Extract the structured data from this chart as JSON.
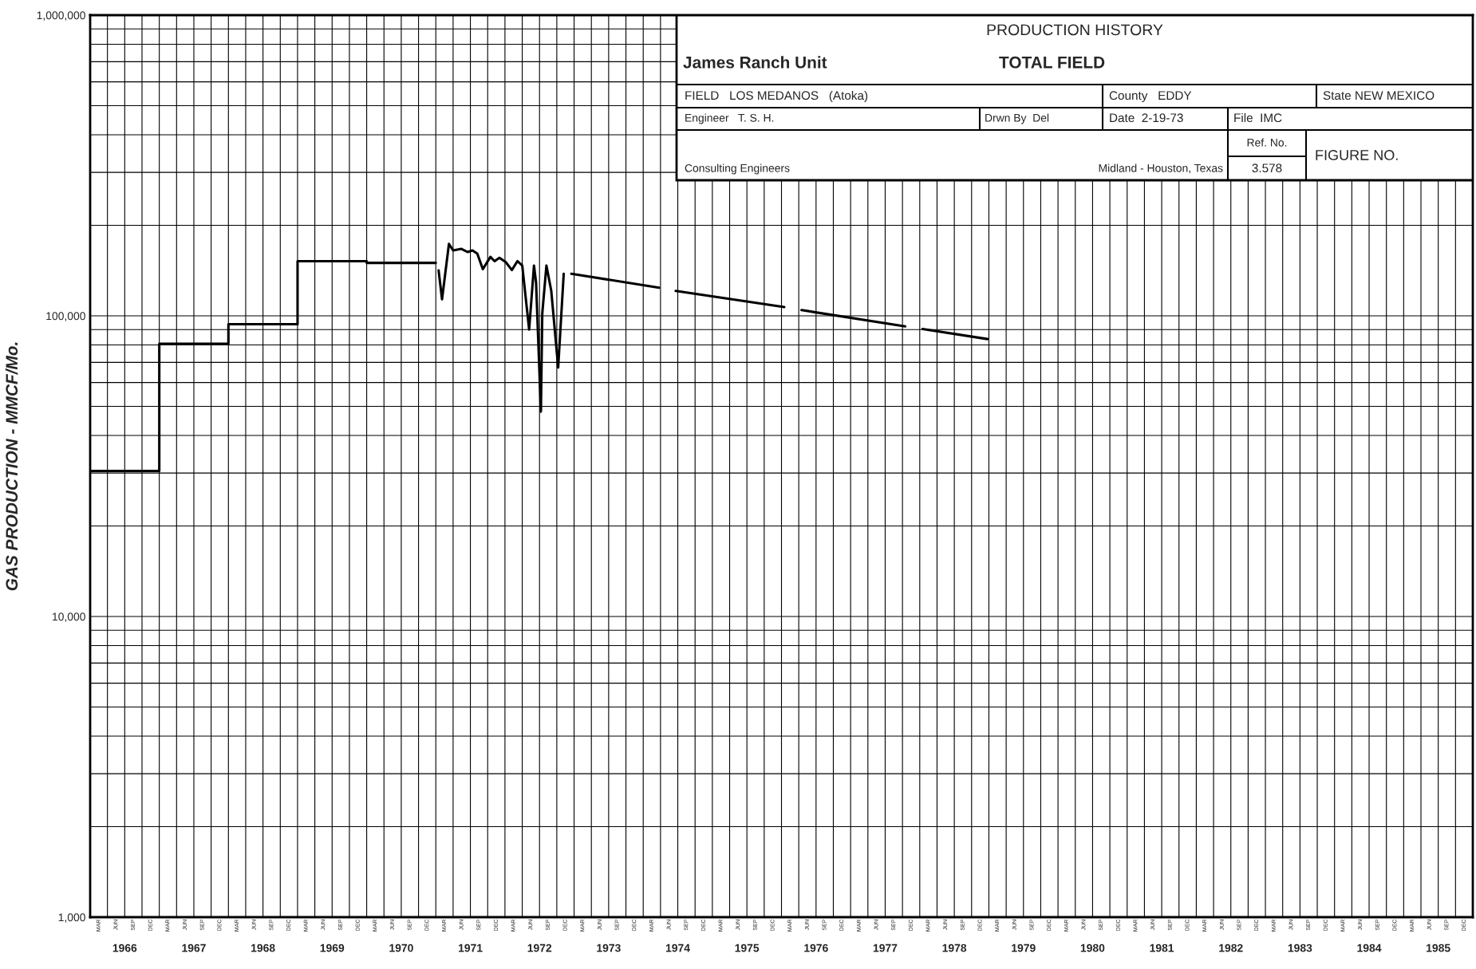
{
  "chart_data": {
    "type": "line",
    "title": "PRODUCTION HISTORY",
    "subtitle": "James Ranch Unit",
    "ylabel": "GAS PRODUCTION - MMCF/Mo.",
    "log": "y",
    "grid": true,
    "xlim": [
      1966,
      1986
    ],
    "ylim": [
      1000,
      1000000
    ],
    "yticks": [
      {
        "value": 1000,
        "label": "1,000"
      },
      {
        "value": 2000,
        "label": null
      },
      {
        "value": 3000,
        "label": null
      },
      {
        "value": 4000,
        "label": null
      },
      {
        "value": 5000,
        "label": null
      },
      {
        "value": 6000,
        "label": null
      },
      {
        "value": 7000,
        "label": null
      },
      {
        "value": 8000,
        "label": null
      },
      {
        "value": 9000,
        "label": null
      },
      {
        "value": 10000,
        "label": "10,000"
      },
      {
        "value": 20000,
        "label": null
      },
      {
        "value": 30000,
        "label": null
      },
      {
        "value": 40000,
        "label": null
      },
      {
        "value": 50000,
        "label": null
      },
      {
        "value": 60000,
        "label": null
      },
      {
        "value": 70000,
        "label": null
      },
      {
        "value": 80000,
        "label": null
      },
      {
        "value": 90000,
        "label": null
      },
      {
        "value": 100000,
        "label": "100,000"
      },
      {
        "value": 200000,
        "label": null
      },
      {
        "value": 300000,
        "label": null
      },
      {
        "value": 400000,
        "label": null
      },
      {
        "value": 500000,
        "label": null
      },
      {
        "value": 600000,
        "label": null
      },
      {
        "value": 700000,
        "label": null
      },
      {
        "value": 800000,
        "label": null
      },
      {
        "value": 900000,
        "label": null
      },
      {
        "value": 1000000,
        "label": "1,000,000"
      }
    ],
    "xticks": [
      {
        "value": 1966,
        "label": null
      },
      {
        "value": 1966.25,
        "label": null
      },
      {
        "value": 1966.5,
        "label": "1966"
      },
      {
        "value": 1966.75,
        "label": null
      },
      {
        "value": 1967,
        "label": null
      },
      {
        "value": 1967.25,
        "label": null
      },
      {
        "value": 1967.5,
        "label": "1967"
      },
      {
        "value": 1967.75,
        "label": null
      },
      {
        "value": 1968,
        "label": null
      },
      {
        "value": 1968.25,
        "label": null
      },
      {
        "value": 1968.5,
        "label": "1968"
      },
      {
        "value": 1968.75,
        "label": null
      },
      {
        "value": 1969,
        "label": null
      },
      {
        "value": 1969.25,
        "label": null
      },
      {
        "value": 1969.5,
        "label": "1969"
      },
      {
        "value": 1969.75,
        "label": null
      },
      {
        "value": 1970,
        "label": null
      },
      {
        "value": 1970.25,
        "label": null
      },
      {
        "value": 1970.5,
        "label": "1970"
      },
      {
        "value": 1970.75,
        "label": null
      },
      {
        "value": 1971,
        "label": null
      },
      {
        "value": 1971.25,
        "label": null
      },
      {
        "value": 1971.5,
        "label": "1971"
      },
      {
        "value": 1971.75,
        "label": null
      },
      {
        "value": 1972,
        "label": null
      },
      {
        "value": 1972.25,
        "label": null
      },
      {
        "value": 1972.5,
        "label": "1972"
      },
      {
        "value": 1972.75,
        "label": null
      },
      {
        "value": 1973,
        "label": null
      },
      {
        "value": 1973.25,
        "label": null
      },
      {
        "value": 1973.5,
        "label": "1973"
      },
      {
        "value": 1973.75,
        "label": null
      },
      {
        "value": 1974,
        "label": null
      },
      {
        "value": 1974.25,
        "label": null
      },
      {
        "value": 1974.5,
        "label": "1974"
      },
      {
        "value": 1974.75,
        "label": null
      },
      {
        "value": 1975,
        "label": null
      },
      {
        "value": 1975.25,
        "label": null
      },
      {
        "value": 1975.5,
        "label": "1975"
      },
      {
        "value": 1975.75,
        "label": null
      },
      {
        "value": 1976,
        "label": null
      },
      {
        "value": 1976.25,
        "label": null
      },
      {
        "value": 1976.5,
        "label": "1976"
      },
      {
        "value": 1976.75,
        "label": null
      },
      {
        "value": 1977,
        "label": null
      },
      {
        "value": 1977.25,
        "label": null
      },
      {
        "value": 1977.5,
        "label": "1977"
      },
      {
        "value": 1977.75,
        "label": null
      },
      {
        "value": 1978,
        "label": null
      },
      {
        "value": 1978.25,
        "label": null
      },
      {
        "value": 1978.5,
        "label": "1978"
      },
      {
        "value": 1978.75,
        "label": null
      },
      {
        "value": 1979,
        "label": null
      },
      {
        "value": 1979.25,
        "label": null
      },
      {
        "value": 1979.5,
        "label": "1979"
      },
      {
        "value": 1979.75,
        "label": null
      },
      {
        "value": 1980,
        "label": null
      },
      {
        "value": 1980.25,
        "label": null
      },
      {
        "value": 1980.5,
        "label": "1980"
      },
      {
        "value": 1980.75,
        "label": null
      },
      {
        "value": 1981,
        "label": null
      },
      {
        "value": 1981.25,
        "label": null
      },
      {
        "value": 1981.5,
        "label": "1981"
      },
      {
        "value": 1981.75,
        "label": null
      },
      {
        "value": 1982,
        "label": null
      },
      {
        "value": 1982.25,
        "label": null
      },
      {
        "value": 1982.5,
        "label": "1982"
      },
      {
        "value": 1982.75,
        "label": null
      },
      {
        "value": 1983,
        "label": null
      },
      {
        "value": 1983.25,
        "label": null
      },
      {
        "value": 1983.5,
        "label": "1983"
      },
      {
        "value": 1983.75,
        "label": null
      },
      {
        "value": 1984,
        "label": null
      },
      {
        "value": 1984.25,
        "label": null
      },
      {
        "value": 1984.5,
        "label": "1984"
      },
      {
        "value": 1984.75,
        "label": null
      },
      {
        "value": 1985,
        "label": null
      },
      {
        "value": 1985.25,
        "label": null
      },
      {
        "value": 1985.5,
        "label": "1985"
      },
      {
        "value": 1985.75,
        "label": null
      }
    ],
    "series": [
      {
        "type": "step",
        "color": "#000000",
        "x": [
          1966,
          1967,
          1968,
          1969,
          1970,
          1971
        ],
        "values": [
          30500,
          80700,
          93800,
          152000,
          150000,
          150000
        ]
      },
      {
        "type": "line",
        "color": "#000000",
        "x": [
          1971.04,
          1971.09,
          1971.19,
          1971.25,
          1971.37,
          1971.46,
          1971.53,
          1971.6,
          1971.68,
          1971.79,
          1971.85,
          1971.92,
          1972.01,
          1972.1,
          1972.18,
          1972.25,
          1972.35,
          1972.42,
          1972.45,
          1972.52,
          1972.54,
          1972.6,
          1972.67,
          1972.77,
          1972.85
        ],
        "values": [
          141700,
          113500,
          173600,
          165000,
          167000,
          163000,
          165000,
          161000,
          143000,
          157000,
          152000,
          156000,
          151000,
          142000,
          152000,
          147000,
          90000,
          147000,
          129000,
          48000,
          102000,
          147000,
          121000,
          67300,
          138000
        ]
      },
      {
        "color": "#000000",
        "x": [
          1972.96,
          1974.23,
          1974.35,
          1974.47,
          1976.04,
          1976.16,
          1976.29,
          1977.79,
          1977.9,
          1978.04,
          1978.98
        ],
        "values": [
          138000,
          124000,
          null,
          121000,
          107000,
          null,
          104500,
          92200,
          null,
          90400,
          83700
        ]
      }
    ],
    "annotations": [
      "TOTAL FIELD",
      "FIELD   LOS MEDANOS   (Atoka)",
      "County   EDDY",
      "State NEW MEXICO",
      "Engineer   T. S. H.",
      "Drwn By  Del",
      "Date  2-19-73",
      "File  IMC",
      "Consulting Engineers",
      "Midland - Houston, Texas",
      "Ref. No.",
      "3.578",
      "FIGURE NO.",
      "MAR",
      "JUN",
      "SEP",
      "DEC",
      "MAR",
      "JUN",
      "SEP",
      "DEC",
      "MAR",
      "JUN",
      "SEP",
      "DEC",
      "MAR",
      "JUN",
      "SEP",
      "DEC",
      "MAR",
      "JUN",
      "SEP",
      "DEC",
      "MAR",
      "JUN",
      "SEP",
      "DEC",
      "MAR",
      "JUN",
      "SEP",
      "DEC",
      "MAR",
      "JUN",
      "SEP",
      "DEC",
      "MAR",
      "JUN",
      "SEP",
      "DEC",
      "MAR",
      "JUN",
      "SEP",
      "DEC",
      "MAR",
      "JUN",
      "SEP",
      "DEC",
      "MAR",
      "JUN",
      "SEP",
      "DEC",
      "MAR",
      "JUN",
      "SEP",
      "DEC",
      "MAR",
      "JUN",
      "SEP",
      "DEC",
      "MAR",
      "JUN",
      "SEP",
      "DEC",
      "MAR",
      "JUN",
      "SEP",
      "DEC",
      "MAR",
      "JUN",
      "SEP",
      "DEC",
      "MAR",
      "JUN",
      "SEP",
      "DEC",
      "MAR",
      "JUN",
      "SEP",
      "DEC",
      "MAR",
      "JUN",
      "SEP",
      "DEC"
    ]
  }
}
